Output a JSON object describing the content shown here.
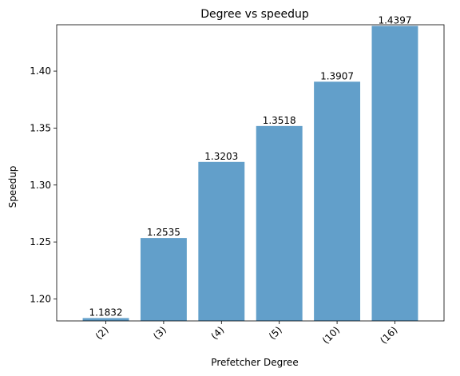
{
  "chart_data": {
    "type": "bar",
    "title": "Degree vs speedup",
    "xlabel": "Prefetcher Degree",
    "ylabel": "Speedup",
    "categories": [
      "(2)",
      "(3)",
      "(4)",
      "(5)",
      "(10)",
      "(16)"
    ],
    "values": [
      1.1832,
      1.2535,
      1.3203,
      1.3518,
      1.3907,
      1.4397
    ],
    "value_labels": [
      "1.1832",
      "1.2535",
      "1.3203",
      "1.3518",
      "1.3907",
      "1.4397"
    ],
    "ylim": [
      1.1807,
      1.4407
    ],
    "yticks": [
      1.2,
      1.25,
      1.3,
      1.35,
      1.4
    ],
    "ytick_labels": [
      "1.20",
      "1.25",
      "1.30",
      "1.35",
      "1.40"
    ],
    "bar_color": "#629fca",
    "grid": false,
    "legend": "none"
  }
}
